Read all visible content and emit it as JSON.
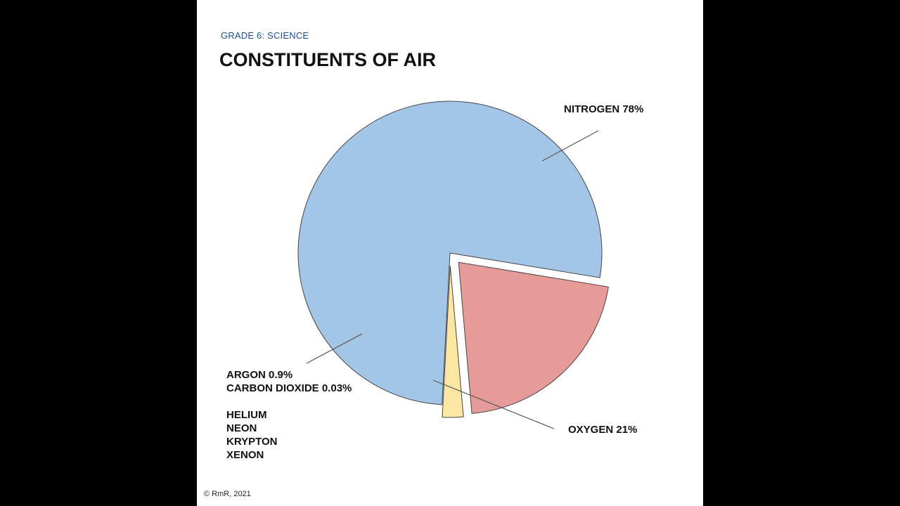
{
  "slide": {
    "subtitle": "GRADE 6: SCIENCE",
    "title": "CONSTITUENTS OF AIR",
    "copyright": "© RmR, 2021"
  },
  "labels": {
    "nitrogen": "NITROGEN  78%",
    "oxygen": "OXYGEN  21%",
    "argon": "ARGON  0.9%",
    "carbon_dioxide": "CARBON DIOXIDE 0.03%",
    "other_gases": [
      "HELIUM",
      "NEON",
      "KRYPTON",
      "XENON"
    ]
  },
  "colors": {
    "nitrogen": "#a3c6e7",
    "oxygen": "#e69b99",
    "argon": "#fbe6a2",
    "outline": "#444444",
    "subtitle": "#1f4e8c"
  },
  "chart_data": {
    "type": "pie",
    "title": "CONSTITUENTS OF AIR",
    "slices": [
      {
        "name": "NITROGEN",
        "value": 78,
        "color": "#a3c6e7",
        "exploded": false
      },
      {
        "name": "OXYGEN",
        "value": 21,
        "color": "#e69b99",
        "exploded": true
      },
      {
        "name": "ARGON",
        "value": 0.9,
        "color": "#fbe6a2",
        "exploded": true
      },
      {
        "name": "CARBON DIOXIDE",
        "value": 0.03,
        "color": "#fbe6a2",
        "exploded": true
      }
    ],
    "other_gases": [
      "HELIUM",
      "NEON",
      "KRYPTON",
      "XENON"
    ]
  }
}
